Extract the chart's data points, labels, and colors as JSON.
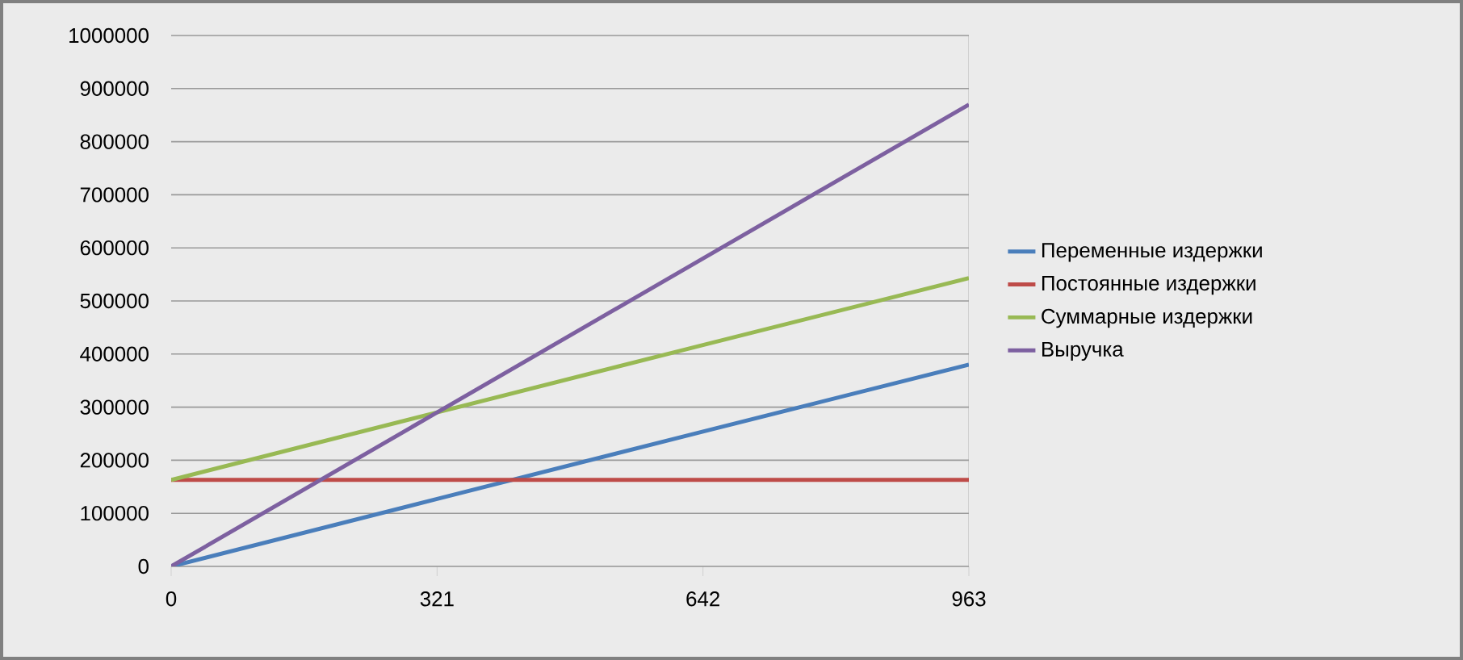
{
  "chart_data": {
    "type": "line",
    "x": [
      0,
      321,
      642,
      963
    ],
    "series": [
      {
        "name": "Переменные издержки",
        "color": "#4a7ebb",
        "values": [
          0,
          127000,
          254000,
          380000
        ]
      },
      {
        "name": "Постоянные издержки",
        "color": "#be4b48",
        "values": [
          163000,
          163000,
          163000,
          163000
        ]
      },
      {
        "name": "Суммарные издержки",
        "color": "#98b954",
        "values": [
          163000,
          290000,
          417000,
          543000
        ]
      },
      {
        "name": "Выручка",
        "color": "#7d60a0",
        "values": [
          0,
          290000,
          580000,
          870000
        ]
      }
    ],
    "xlim": [
      0,
      963
    ],
    "xticks": [
      0,
      321,
      642,
      963
    ],
    "ylim": [
      0,
      1000000
    ],
    "yticks": [
      0,
      100000,
      200000,
      300000,
      400000,
      500000,
      600000,
      700000,
      800000,
      900000,
      1000000
    ],
    "grid": "y",
    "legend": "right",
    "marker": "none",
    "line_style": "solid"
  }
}
